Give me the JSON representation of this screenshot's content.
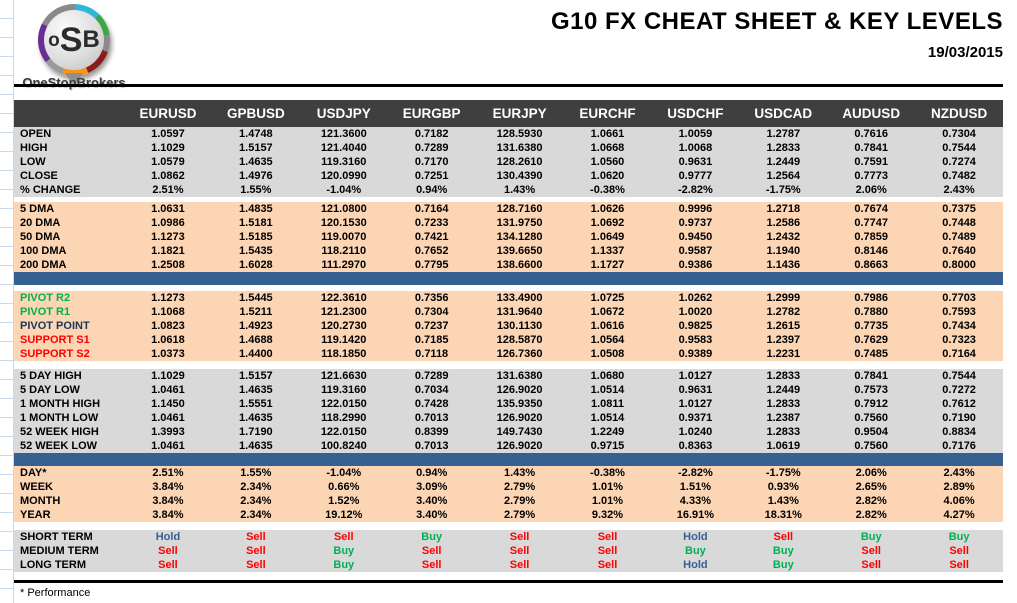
{
  "colors": {
    "buy": "#00b050",
    "sell": "#ff0000",
    "hold": "#365f91",
    "green": "#00b050",
    "red": "#ff0000",
    "navy": "#17375d",
    "header_bg": "#3f3f3f",
    "gray_section_bg": "#d9d9d9",
    "peach_section_bg": "#fcd5b4",
    "divider_blue": "#376092"
  },
  "logo": {
    "monogram_o": "o",
    "monogram_s": "S",
    "monogram_b": "B",
    "name": "OneStopBrokers"
  },
  "header": {
    "title": "G10 FX CHEAT SHEET & KEY LEVELS",
    "date": "19/03/2015"
  },
  "footnote": "* Performance",
  "table": {
    "columns": [
      "EURUSD",
      "GPBUSD",
      "USDJPY",
      "EURGBP",
      "EURJPY",
      "EURCHF",
      "USDCHF",
      "USDCAD",
      "AUDUSD",
      "NZDUSD"
    ],
    "sections": [
      {
        "id": "ohlc",
        "bg": "gray",
        "rows": [
          {
            "label": "OPEN",
            "values": [
              "1.0597",
              "1.4748",
              "121.3600",
              "0.7182",
              "128.5930",
              "1.0661",
              "1.0059",
              "1.2787",
              "0.7616",
              "0.7304"
            ]
          },
          {
            "label": "HIGH",
            "values": [
              "1.1029",
              "1.5157",
              "121.4040",
              "0.7289",
              "131.6380",
              "1.0668",
              "1.0068",
              "1.2833",
              "0.7841",
              "0.7544"
            ]
          },
          {
            "label": "LOW",
            "values": [
              "1.0579",
              "1.4635",
              "119.3160",
              "0.7170",
              "128.2610",
              "1.0560",
              "0.9631",
              "1.2449",
              "0.7591",
              "0.7274"
            ]
          },
          {
            "label": "CLOSE",
            "values": [
              "1.0862",
              "1.4976",
              "120.0990",
              "0.7251",
              "130.4390",
              "1.0620",
              "0.9777",
              "1.2564",
              "0.7773",
              "0.7482"
            ]
          },
          {
            "label": "% CHANGE",
            "values": [
              "2.51%",
              "1.55%",
              "-1.04%",
              "0.94%",
              "1.43%",
              "-0.38%",
              "-2.82%",
              "-1.75%",
              "2.06%",
              "2.43%"
            ]
          }
        ]
      },
      {
        "id": "dma",
        "bg": "peach",
        "rows": [
          {
            "label": "5 DMA",
            "values": [
              "1.0631",
              "1.4835",
              "121.0800",
              "0.7164",
              "128.7160",
              "1.0626",
              "0.9996",
              "1.2718",
              "0.7674",
              "0.7375"
            ]
          },
          {
            "label": "20 DMA",
            "values": [
              "1.0986",
              "1.5181",
              "120.1530",
              "0.7233",
              "131.9750",
              "1.0692",
              "0.9737",
              "1.2586",
              "0.7747",
              "0.7448"
            ]
          },
          {
            "label": "50 DMA",
            "values": [
              "1.1273",
              "1.5185",
              "119.0070",
              "0.7421",
              "134.1280",
              "1.0649",
              "0.9450",
              "1.2432",
              "0.7859",
              "0.7489"
            ]
          },
          {
            "label": "100 DMA",
            "values": [
              "1.1821",
              "1.5435",
              "118.2110",
              "0.7652",
              "139.6650",
              "1.1337",
              "0.9587",
              "1.1940",
              "0.8146",
              "0.7640"
            ]
          },
          {
            "label": "200 DMA",
            "values": [
              "1.2508",
              "1.6028",
              "111.2970",
              "0.7795",
              "138.6600",
              "1.1727",
              "0.9386",
              "1.1436",
              "0.8663",
              "0.8000"
            ]
          }
        ]
      },
      {
        "id": "divider-1",
        "divider": true
      },
      {
        "id": "pivots",
        "bg": "peach",
        "rows": [
          {
            "label": "PIVOT R2",
            "label_color": "green",
            "values": [
              "1.1273",
              "1.5445",
              "122.3610",
              "0.7356",
              "133.4900",
              "1.0725",
              "1.0262",
              "1.2999",
              "0.7986",
              "0.7703"
            ]
          },
          {
            "label": "PIVOT R1",
            "label_color": "green",
            "values": [
              "1.1068",
              "1.5211",
              "121.2300",
              "0.7304",
              "131.9640",
              "1.0672",
              "1.0020",
              "1.2782",
              "0.7880",
              "0.7593"
            ]
          },
          {
            "label": "PIVOT POINT",
            "label_color": "navy",
            "values": [
              "1.0823",
              "1.4923",
              "120.2730",
              "0.7237",
              "130.1130",
              "1.0616",
              "0.9825",
              "1.2615",
              "0.7735",
              "0.7434"
            ]
          },
          {
            "label": "SUPPORT S1",
            "label_color": "red",
            "values": [
              "1.0618",
              "1.4688",
              "119.1420",
              "0.7185",
              "128.5870",
              "1.0564",
              "0.9583",
              "1.2397",
              "0.7629",
              "0.7323"
            ]
          },
          {
            "label": "SUPPORT S2",
            "label_color": "red",
            "values": [
              "1.0373",
              "1.4400",
              "118.1850",
              "0.7118",
              "126.7360",
              "1.0508",
              "0.9389",
              "1.2231",
              "0.7485",
              "0.7164"
            ]
          }
        ]
      },
      {
        "id": "ranges",
        "bg": "gray",
        "rows": [
          {
            "label": "5 DAY HIGH",
            "values": [
              "1.1029",
              "1.5157",
              "121.6630",
              "0.7289",
              "131.6380",
              "1.0680",
              "1.0127",
              "1.2833",
              "0.7841",
              "0.7544"
            ]
          },
          {
            "label": "5 DAY LOW",
            "values": [
              "1.0461",
              "1.4635",
              "119.3160",
              "0.7034",
              "126.9020",
              "1.0514",
              "0.9631",
              "1.2449",
              "0.7573",
              "0.7272"
            ]
          },
          {
            "label": "1 MONTH HIGH",
            "values": [
              "1.1450",
              "1.5551",
              "122.0150",
              "0.7428",
              "135.9350",
              "1.0811",
              "1.0127",
              "1.2833",
              "0.7912",
              "0.7612"
            ]
          },
          {
            "label": "1 MONTH LOW",
            "values": [
              "1.0461",
              "1.4635",
              "118.2990",
              "0.7013",
              "126.9020",
              "1.0514",
              "0.9371",
              "1.2387",
              "0.7560",
              "0.7190"
            ]
          },
          {
            "label": "52 WEEK HIGH",
            "values": [
              "1.3993",
              "1.7190",
              "122.0150",
              "0.8399",
              "149.7430",
              "1.2249",
              "1.0240",
              "1.2833",
              "0.9504",
              "0.8834"
            ]
          },
          {
            "label": "52 WEEK LOW",
            "values": [
              "1.0461",
              "1.4635",
              "100.8240",
              "0.7013",
              "126.9020",
              "0.9715",
              "0.8363",
              "1.0619",
              "0.7560",
              "0.7176"
            ]
          }
        ]
      },
      {
        "id": "divider-2",
        "divider": true
      },
      {
        "id": "performance",
        "bg": "peach",
        "rows": [
          {
            "label": "DAY*",
            "values": [
              "2.51%",
              "1.55%",
              "-1.04%",
              "0.94%",
              "1.43%",
              "-0.38%",
              "-2.82%",
              "-1.75%",
              "2.06%",
              "2.43%"
            ]
          },
          {
            "label": "WEEK",
            "values": [
              "3.84%",
              "2.34%",
              "0.66%",
              "3.09%",
              "2.79%",
              "1.01%",
              "1.51%",
              "0.93%",
              "2.65%",
              "2.89%"
            ]
          },
          {
            "label": "MONTH",
            "values": [
              "3.84%",
              "2.34%",
              "1.52%",
              "3.40%",
              "2.79%",
              "1.01%",
              "4.33%",
              "1.43%",
              "2.82%",
              "4.06%"
            ]
          },
          {
            "label": "YEAR",
            "values": [
              "3.84%",
              "2.34%",
              "19.12%",
              "3.40%",
              "2.79%",
              "9.32%",
              "16.91%",
              "18.31%",
              "2.82%",
              "4.27%"
            ]
          }
        ]
      },
      {
        "id": "signals",
        "bg": "gray",
        "signals": true,
        "rows": [
          {
            "label": "SHORT TERM",
            "values": [
              "Hold",
              "Sell",
              "Sell",
              "Buy",
              "Sell",
              "Sell",
              "Hold",
              "Sell",
              "Buy",
              "Buy"
            ]
          },
          {
            "label": "MEDIUM TERM",
            "values": [
              "Sell",
              "Sell",
              "Buy",
              "Sell",
              "Sell",
              "Sell",
              "Buy",
              "Buy",
              "Sell",
              "Sell"
            ]
          },
          {
            "label": "LONG TERM",
            "values": [
              "Sell",
              "Sell",
              "Buy",
              "Sell",
              "Sell",
              "Sell",
              "Hold",
              "Buy",
              "Sell",
              "Sell"
            ]
          }
        ]
      }
    ]
  }
}
